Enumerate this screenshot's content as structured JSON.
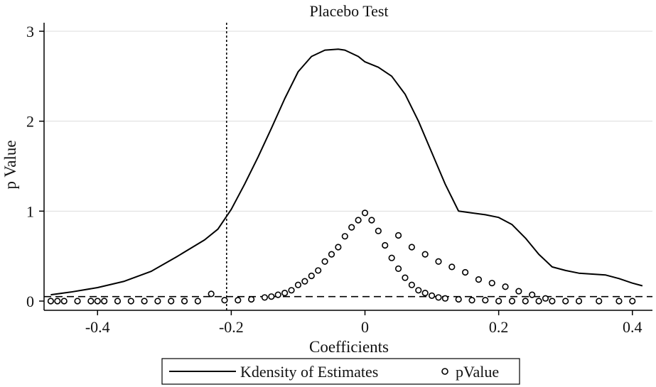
{
  "chart_data": {
    "type": "line",
    "title": "Placebo Test",
    "xlabel": "Coefficients",
    "ylabel": "p Value",
    "xlim": [
      -0.48,
      0.43
    ],
    "ylim": [
      0,
      3
    ],
    "x_ticks": [
      -0.4,
      -0.2,
      0,
      0.2,
      0.4
    ],
    "x_tick_labels": [
      "-0.4",
      "-0.2",
      "0",
      "0.2",
      "0.4"
    ],
    "y_ticks": [
      0,
      1,
      2,
      3
    ],
    "y_tick_labels": [
      "0",
      "1",
      "2",
      "3"
    ],
    "grid": "horizontal",
    "reference_lines": {
      "vertical_x": -0.207,
      "horizontal_y": 0.05
    },
    "legend": {
      "position": "bottom",
      "entries": [
        "Kdensity of Estimates",
        "pValue"
      ]
    },
    "series": [
      {
        "name": "Kdensity of Estimates",
        "kind": "line",
        "x": [
          -0.47,
          -0.44,
          -0.4,
          -0.36,
          -0.32,
          -0.28,
          -0.24,
          -0.22,
          -0.2,
          -0.18,
          -0.16,
          -0.14,
          -0.12,
          -0.1,
          -0.08,
          -0.06,
          -0.04,
          -0.03,
          -0.01,
          0.0,
          0.02,
          0.04,
          0.06,
          0.08,
          0.1,
          0.12,
          0.14,
          0.16,
          0.18,
          0.2,
          0.22,
          0.24,
          0.26,
          0.28,
          0.3,
          0.32,
          0.36,
          0.38,
          0.4,
          0.415
        ],
        "y": [
          0.07,
          0.1,
          0.15,
          0.22,
          0.33,
          0.5,
          0.68,
          0.8,
          1.02,
          1.3,
          1.6,
          1.92,
          2.25,
          2.55,
          2.72,
          2.79,
          2.8,
          2.79,
          2.72,
          2.66,
          2.6,
          2.5,
          2.3,
          2.0,
          1.65,
          1.3,
          1.0,
          0.98,
          0.96,
          0.93,
          0.85,
          0.7,
          0.52,
          0.38,
          0.34,
          0.31,
          0.29,
          0.25,
          0.2,
          0.17
        ]
      },
      {
        "name": "pValue",
        "kind": "scatter",
        "x": [
          -0.47,
          -0.46,
          -0.45,
          -0.43,
          -0.41,
          -0.4,
          -0.39,
          -0.37,
          -0.35,
          -0.33,
          -0.31,
          -0.29,
          -0.27,
          -0.25,
          -0.23,
          -0.21,
          -0.19,
          -0.17,
          -0.15,
          -0.14,
          -0.13,
          -0.12,
          -0.11,
          -0.1,
          -0.09,
          -0.08,
          -0.07,
          -0.06,
          -0.05,
          -0.04,
          -0.03,
          -0.02,
          -0.01,
          0.0,
          0.01,
          0.02,
          0.03,
          0.04,
          0.05,
          0.06,
          0.07,
          0.08,
          0.09,
          0.1,
          0.11,
          0.12,
          0.14,
          0.16,
          0.18,
          0.2,
          0.22,
          0.24,
          0.26,
          0.28,
          0.3,
          0.32,
          0.35,
          0.38,
          0.4
        ],
        "y": [
          0,
          0,
          0,
          0,
          0,
          0,
          0,
          0,
          0,
          0,
          0,
          0,
          0,
          0,
          0.08,
          0.01,
          0.01,
          0.02,
          0.04,
          0.05,
          0.07,
          0.09,
          0.12,
          0.18,
          0.22,
          0.28,
          0.34,
          0.44,
          0.52,
          0.6,
          0.72,
          0.82,
          0.9,
          0.98,
          0.9,
          0.78,
          0.62,
          0.48,
          0.36,
          0.26,
          0.18,
          0.12,
          0.09,
          0.06,
          0.04,
          0.03,
          0.02,
          0.01,
          0.01,
          0,
          0,
          0,
          0,
          0,
          0,
          0,
          0,
          0,
          0
        ]
      },
      {
        "name": "pValue",
        "kind": "scatter",
        "x": [
          0.05,
          0.07,
          0.09,
          0.11,
          0.13,
          0.15,
          0.17,
          0.19,
          0.21,
          0.23,
          0.25,
          0.27
        ],
        "y": [
          0.73,
          0.6,
          0.52,
          0.44,
          0.38,
          0.32,
          0.24,
          0.2,
          0.16,
          0.11,
          0.07,
          0.03
        ]
      }
    ]
  }
}
